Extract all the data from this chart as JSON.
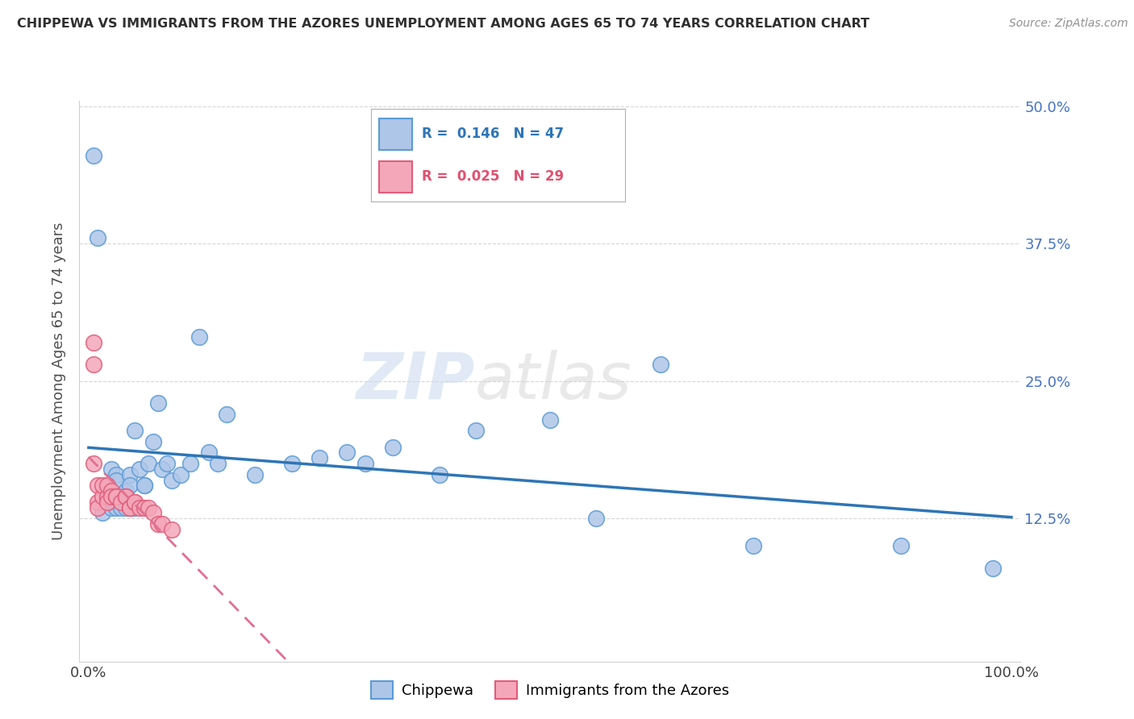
{
  "title": "CHIPPEWA VS IMMIGRANTS FROM THE AZORES UNEMPLOYMENT AMONG AGES 65 TO 74 YEARS CORRELATION CHART",
  "source": "Source: ZipAtlas.com",
  "ylabel": "Unemployment Among Ages 65 to 74 years",
  "xlim": [
    -0.01,
    1.01
  ],
  "ylim": [
    -0.005,
    0.505
  ],
  "xticks": [
    0.0,
    1.0
  ],
  "xticklabels": [
    "0.0%",
    "100.0%"
  ],
  "yticks": [
    0.125,
    0.25,
    0.375,
    0.5
  ],
  "yticklabels": [
    "12.5%",
    "25.0%",
    "37.5%",
    "50.0%"
  ],
  "chippewa_R": "0.146",
  "chippewa_N": "47",
  "azores_R": "0.025",
  "azores_N": "29",
  "chippewa_color": "#aec6e8",
  "chippewa_edge": "#5b9bd5",
  "azores_color": "#f4a7b9",
  "azores_edge": "#e05c7a",
  "chippewa_line_color": "#2e75b6",
  "azores_line_color": "#e07090",
  "watermark_zip": "ZIP",
  "watermark_atlas": "atlas",
  "background_color": "#ffffff",
  "grid_color": "#cccccc",
  "chippewa_x": [
    0.005,
    0.01,
    0.015,
    0.02,
    0.02,
    0.025,
    0.025,
    0.03,
    0.03,
    0.03,
    0.035,
    0.035,
    0.04,
    0.04,
    0.045,
    0.045,
    0.05,
    0.05,
    0.055,
    0.06,
    0.06,
    0.065,
    0.07,
    0.075,
    0.08,
    0.085,
    0.09,
    0.1,
    0.11,
    0.12,
    0.13,
    0.14,
    0.15,
    0.18,
    0.22,
    0.25,
    0.28,
    0.3,
    0.33,
    0.38,
    0.42,
    0.5,
    0.55,
    0.62,
    0.72,
    0.88,
    0.98
  ],
  "chippewa_y": [
    0.455,
    0.38,
    0.13,
    0.145,
    0.145,
    0.135,
    0.17,
    0.135,
    0.165,
    0.16,
    0.135,
    0.145,
    0.135,
    0.15,
    0.165,
    0.155,
    0.205,
    0.135,
    0.17,
    0.155,
    0.155,
    0.175,
    0.195,
    0.23,
    0.17,
    0.175,
    0.16,
    0.165,
    0.175,
    0.29,
    0.185,
    0.175,
    0.22,
    0.165,
    0.175,
    0.18,
    0.185,
    0.175,
    0.19,
    0.165,
    0.205,
    0.215,
    0.125,
    0.265,
    0.1,
    0.1,
    0.08
  ],
  "azores_x": [
    0.005,
    0.005,
    0.005,
    0.01,
    0.01,
    0.01,
    0.015,
    0.015,
    0.02,
    0.02,
    0.02,
    0.025,
    0.025,
    0.03,
    0.03,
    0.035,
    0.04,
    0.04,
    0.045,
    0.045,
    0.05,
    0.05,
    0.055,
    0.06,
    0.065,
    0.07,
    0.075,
    0.08,
    0.09
  ],
  "azores_y": [
    0.285,
    0.265,
    0.175,
    0.14,
    0.135,
    0.155,
    0.145,
    0.155,
    0.145,
    0.14,
    0.155,
    0.15,
    0.145,
    0.145,
    0.145,
    0.14,
    0.145,
    0.145,
    0.135,
    0.135,
    0.14,
    0.14,
    0.135,
    0.135,
    0.135,
    0.13,
    0.12,
    0.12,
    0.115
  ]
}
